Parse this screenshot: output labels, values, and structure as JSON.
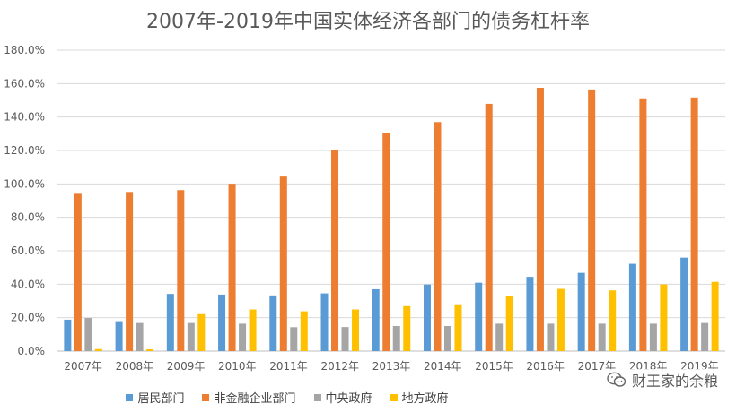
{
  "chart_data": {
    "type": "bar",
    "title": "2007年-2019年中国实体经济各部门的债务杠杆率",
    "categories": [
      "2007年",
      "2008年",
      "2009年",
      "2010年",
      "2011年",
      "2012年",
      "2013年",
      "2014年",
      "2015年",
      "2016年",
      "2017年",
      "2018年",
      "2019年"
    ],
    "series": [
      {
        "name": "居民部门",
        "color": "#5b9bd5",
        "values": [
          18.8,
          17.9,
          34.2,
          33.8,
          33.3,
          34.5,
          37.0,
          39.8,
          40.9,
          44.4,
          46.8,
          52.2,
          55.9
        ]
      },
      {
        "name": "非金融企业部门",
        "color": "#ed7d31",
        "values": [
          94.1,
          95.2,
          96.3,
          100.1,
          104.4,
          120.0,
          130.2,
          137.0,
          147.9,
          157.5,
          156.5,
          151.2,
          151.7
        ]
      },
      {
        "name": "中央政府",
        "color": "#a5a5a5",
        "values": [
          19.8,
          16.8,
          16.8,
          16.4,
          14.3,
          14.4,
          15.0,
          15.0,
          16.4,
          16.4,
          16.4,
          16.4,
          16.8
        ]
      },
      {
        "name": "地方政府",
        "color": "#ffc000",
        "values": [
          1.2,
          1.1,
          22.1,
          24.9,
          23.8,
          24.9,
          26.9,
          28.0,
          33.0,
          37.2,
          36.3,
          39.9,
          41.4
        ]
      }
    ],
    "ylim": [
      0,
      180
    ],
    "yticks": [
      "0.0%",
      "20.0%",
      "40.0%",
      "60.0%",
      "80.0%",
      "100.0%",
      "120.0%",
      "140.0%",
      "160.0%",
      "180.0%"
    ],
    "grid": true,
    "legend_position": "bottom"
  },
  "watermark": {
    "text": "财王家的余粮",
    "icon": "wechat-icon"
  }
}
